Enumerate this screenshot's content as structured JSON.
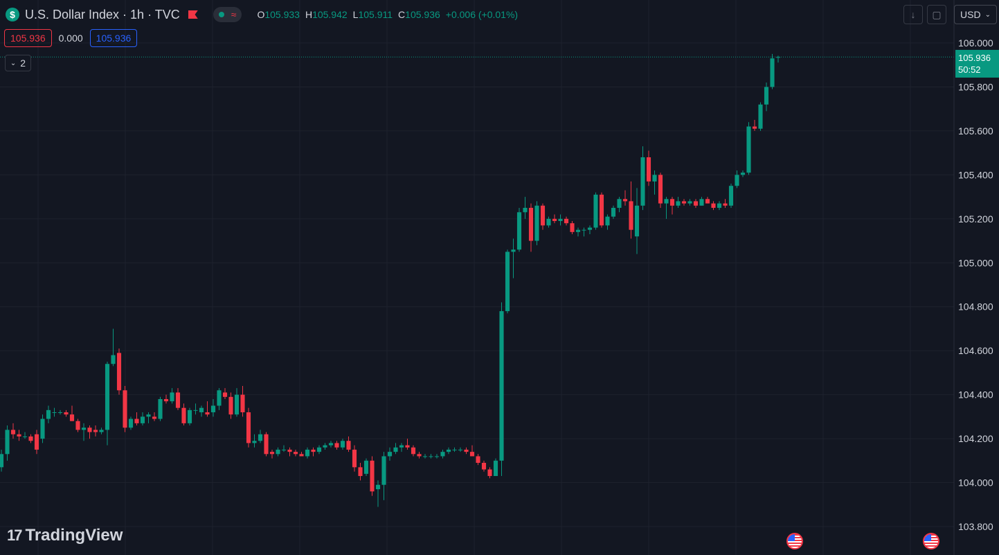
{
  "header": {
    "symbol_title": "U.S. Dollar Index · 1h · TVC",
    "currency_icon": "$",
    "wave_icon": "≈",
    "ohlc": {
      "o_label": "O",
      "o": "105.933",
      "h_label": "H",
      "h": "105.942",
      "l_label": "L",
      "l": "105.911",
      "c_label": "C",
      "c": "105.936",
      "change": "+0.006 (+0.01%)"
    },
    "sell_price": "105.936",
    "spread": "0.000",
    "buy_price": "105.936",
    "collapse_count": "2",
    "currency_select": "USD"
  },
  "price_label": {
    "price": "105.936",
    "countdown": "50:52"
  },
  "logo": {
    "mark": "17",
    "text": "TradingView"
  },
  "colors": {
    "up": "#089981",
    "down": "#f23645",
    "background": "#131722",
    "grid": "#1e222d",
    "axis_text": "#d1d4dc"
  },
  "chart_data": {
    "type": "candlestick",
    "yaxis_side": "right",
    "ylim": [
      103.75,
      106.1
    ],
    "yticks": [
      "106.000",
      "105.800",
      "105.600",
      "105.400",
      "105.200",
      "105.000",
      "104.800",
      "104.600",
      "104.400",
      "104.200",
      "104.000",
      "103.800"
    ],
    "last_price": 105.936,
    "candles": [
      [
        104.07,
        104.15,
        104.05,
        104.13
      ],
      [
        104.13,
        104.26,
        104.1,
        104.24
      ],
      [
        104.24,
        104.27,
        104.2,
        104.22
      ],
      [
        104.22,
        104.24,
        104.19,
        104.21
      ],
      [
        104.21,
        104.23,
        104.2,
        104.21
      ],
      [
        104.21,
        104.22,
        104.18,
        104.19
      ],
      [
        104.22,
        104.24,
        104.13,
        104.15
      ],
      [
        104.2,
        104.31,
        104.18,
        104.29
      ],
      [
        104.29,
        104.35,
        104.27,
        104.33
      ],
      [
        104.32,
        104.34,
        104.3,
        104.32
      ],
      [
        104.32,
        104.33,
        104.31,
        104.32
      ],
      [
        104.32,
        104.33,
        104.3,
        104.31
      ],
      [
        104.31,
        104.35,
        104.28,
        104.28
      ],
      [
        104.28,
        104.29,
        104.23,
        104.24
      ],
      [
        104.24,
        104.27,
        104.19,
        104.25
      ],
      [
        104.25,
        104.26,
        104.2,
        104.23
      ],
      [
        104.24,
        104.26,
        104.21,
        104.23
      ],
      [
        104.23,
        104.25,
        104.22,
        104.24
      ],
      [
        104.24,
        104.55,
        104.17,
        104.54
      ],
      [
        104.54,
        104.7,
        104.53,
        104.58
      ],
      [
        104.59,
        104.61,
        104.4,
        104.42
      ],
      [
        104.42,
        104.44,
        104.23,
        104.25
      ],
      [
        104.25,
        104.3,
        104.24,
        104.29
      ],
      [
        104.29,
        104.32,
        104.26,
        104.27
      ],
      [
        104.27,
        104.32,
        104.26,
        104.3
      ],
      [
        104.3,
        104.32,
        104.27,
        104.31
      ],
      [
        104.3,
        104.32,
        104.28,
        104.29
      ],
      [
        104.29,
        104.39,
        104.28,
        104.38
      ],
      [
        104.38,
        104.4,
        104.36,
        104.37
      ],
      [
        104.37,
        104.43,
        104.36,
        104.41
      ],
      [
        104.41,
        104.43,
        104.33,
        104.34
      ],
      [
        104.34,
        104.36,
        104.26,
        104.27
      ],
      [
        104.27,
        104.34,
        104.26,
        104.33
      ],
      [
        104.33,
        104.36,
        104.31,
        104.33
      ],
      [
        104.32,
        104.35,
        104.3,
        104.34
      ],
      [
        104.32,
        104.37,
        104.3,
        104.31
      ],
      [
        104.32,
        104.38,
        104.3,
        104.35
      ],
      [
        104.35,
        104.43,
        104.33,
        104.42
      ],
      [
        104.41,
        104.43,
        104.38,
        104.39
      ],
      [
        104.39,
        104.41,
        104.29,
        104.31
      ],
      [
        104.31,
        104.43,
        104.3,
        104.4
      ],
      [
        104.4,
        104.44,
        104.3,
        104.32
      ],
      [
        104.32,
        104.34,
        104.16,
        104.18
      ],
      [
        104.18,
        104.22,
        104.16,
        104.19
      ],
      [
        104.19,
        104.24,
        104.18,
        104.22
      ],
      [
        104.22,
        104.23,
        104.12,
        104.13
      ],
      [
        104.14,
        104.15,
        104.11,
        104.13
      ],
      [
        104.13,
        104.16,
        104.12,
        104.15
      ],
      [
        104.15,
        104.17,
        104.14,
        104.15
      ],
      [
        104.15,
        104.16,
        104.12,
        104.14
      ],
      [
        104.14,
        104.15,
        104.12,
        104.13
      ],
      [
        104.13,
        104.14,
        104.12,
        104.12
      ],
      [
        104.12,
        104.16,
        104.11,
        104.15
      ],
      [
        104.15,
        104.16,
        104.12,
        104.14
      ],
      [
        104.14,
        104.17,
        104.13,
        104.16
      ],
      [
        104.16,
        104.18,
        104.15,
        104.17
      ],
      [
        104.17,
        104.19,
        104.16,
        104.18
      ],
      [
        104.18,
        104.19,
        104.15,
        104.16
      ],
      [
        104.16,
        104.2,
        104.15,
        104.19
      ],
      [
        104.19,
        104.21,
        104.14,
        104.15
      ],
      [
        104.15,
        104.17,
        104.05,
        104.07
      ],
      [
        104.07,
        104.09,
        104.01,
        104.03
      ],
      [
        104.04,
        104.11,
        104.03,
        104.1
      ],
      [
        104.1,
        104.12,
        103.94,
        103.96
      ],
      [
        103.97,
        104.01,
        103.89,
        103.99
      ],
      [
        103.99,
        104.14,
        103.92,
        104.12
      ],
      [
        104.12,
        104.16,
        104.1,
        104.14
      ],
      [
        104.14,
        104.18,
        104.13,
        104.16
      ],
      [
        104.16,
        104.18,
        104.14,
        104.17
      ],
      [
        104.17,
        104.2,
        104.15,
        104.16
      ],
      [
        104.16,
        104.17,
        104.12,
        104.13
      ],
      [
        104.13,
        104.14,
        104.11,
        104.12
      ],
      [
        104.12,
        104.13,
        104.11,
        104.12
      ],
      [
        104.12,
        104.13,
        104.11,
        104.12
      ],
      [
        104.12,
        104.13,
        104.11,
        104.12
      ],
      [
        104.12,
        104.15,
        104.11,
        104.14
      ],
      [
        104.14,
        104.16,
        104.13,
        104.15
      ],
      [
        104.15,
        104.16,
        104.14,
        104.15
      ],
      [
        104.15,
        104.16,
        104.14,
        104.15
      ],
      [
        104.15,
        104.16,
        104.13,
        104.14
      ],
      [
        104.14,
        104.17,
        104.13,
        104.12
      ],
      [
        104.12,
        104.13,
        104.08,
        104.09
      ],
      [
        104.09,
        104.1,
        104.05,
        104.06
      ],
      [
        104.06,
        104.07,
        104.02,
        104.03
      ],
      [
        104.03,
        104.11,
        104.03,
        104.1
      ],
      [
        104.1,
        104.82,
        104.03,
        104.78
      ],
      [
        104.78,
        105.06,
        104.77,
        105.05
      ],
      [
        105.05,
        105.11,
        104.93,
        105.06
      ],
      [
        105.06,
        105.25,
        105.05,
        105.23
      ],
      [
        105.23,
        105.3,
        105.2,
        105.25
      ],
      [
        105.25,
        105.27,
        105.05,
        105.1
      ],
      [
        105.1,
        105.28,
        105.08,
        105.26
      ],
      [
        105.26,
        105.27,
        105.15,
        105.17
      ],
      [
        105.17,
        105.21,
        105.16,
        105.2
      ],
      [
        105.2,
        105.22,
        105.18,
        105.19
      ],
      [
        105.19,
        105.22,
        105.17,
        105.2
      ],
      [
        105.2,
        105.21,
        105.17,
        105.18
      ],
      [
        105.18,
        105.19,
        105.13,
        105.14
      ],
      [
        105.14,
        105.16,
        105.12,
        105.15
      ],
      [
        105.15,
        105.16,
        105.12,
        105.15
      ],
      [
        105.15,
        105.17,
        105.13,
        105.16
      ],
      [
        105.16,
        105.32,
        105.15,
        105.31
      ],
      [
        105.31,
        105.32,
        105.16,
        105.17
      ],
      [
        105.17,
        105.22,
        105.15,
        105.21
      ],
      [
        105.21,
        105.26,
        105.2,
        105.25
      ],
      [
        105.25,
        105.3,
        105.23,
        105.29
      ],
      [
        105.29,
        105.33,
        105.26,
        105.28
      ],
      [
        105.28,
        105.37,
        105.11,
        105.15
      ],
      [
        105.12,
        105.34,
        105.04,
        105.26
      ],
      [
        105.26,
        105.53,
        105.24,
        105.48
      ],
      [
        105.48,
        105.51,
        105.35,
        105.37
      ],
      [
        105.37,
        105.42,
        105.31,
        105.4
      ],
      [
        105.4,
        105.41,
        105.25,
        105.27
      ],
      [
        105.27,
        105.3,
        105.2,
        105.29
      ],
      [
        105.29,
        105.3,
        105.22,
        105.26
      ],
      [
        105.26,
        105.3,
        105.25,
        105.28
      ],
      [
        105.28,
        105.29,
        105.26,
        105.27
      ],
      [
        105.27,
        105.29,
        105.26,
        105.28
      ],
      [
        105.28,
        105.29,
        105.25,
        105.26
      ],
      [
        105.26,
        105.3,
        105.26,
        105.29
      ],
      [
        105.29,
        105.3,
        105.27,
        105.27
      ],
      [
        105.27,
        105.28,
        105.24,
        105.25
      ],
      [
        105.25,
        105.28,
        105.24,
        105.27
      ],
      [
        105.27,
        105.29,
        105.25,
        105.26
      ],
      [
        105.26,
        105.36,
        105.25,
        105.35
      ],
      [
        105.35,
        105.42,
        105.34,
        105.4
      ],
      [
        105.4,
        105.42,
        105.39,
        105.41
      ],
      [
        105.41,
        105.64,
        105.4,
        105.62
      ],
      [
        105.62,
        105.65,
        105.6,
        105.61
      ],
      [
        105.61,
        105.73,
        105.6,
        105.72
      ],
      [
        105.72,
        105.82,
        105.69,
        105.8
      ],
      [
        105.8,
        105.95,
        105.79,
        105.93
      ],
      [
        105.933,
        105.942,
        105.911,
        105.936
      ]
    ]
  }
}
